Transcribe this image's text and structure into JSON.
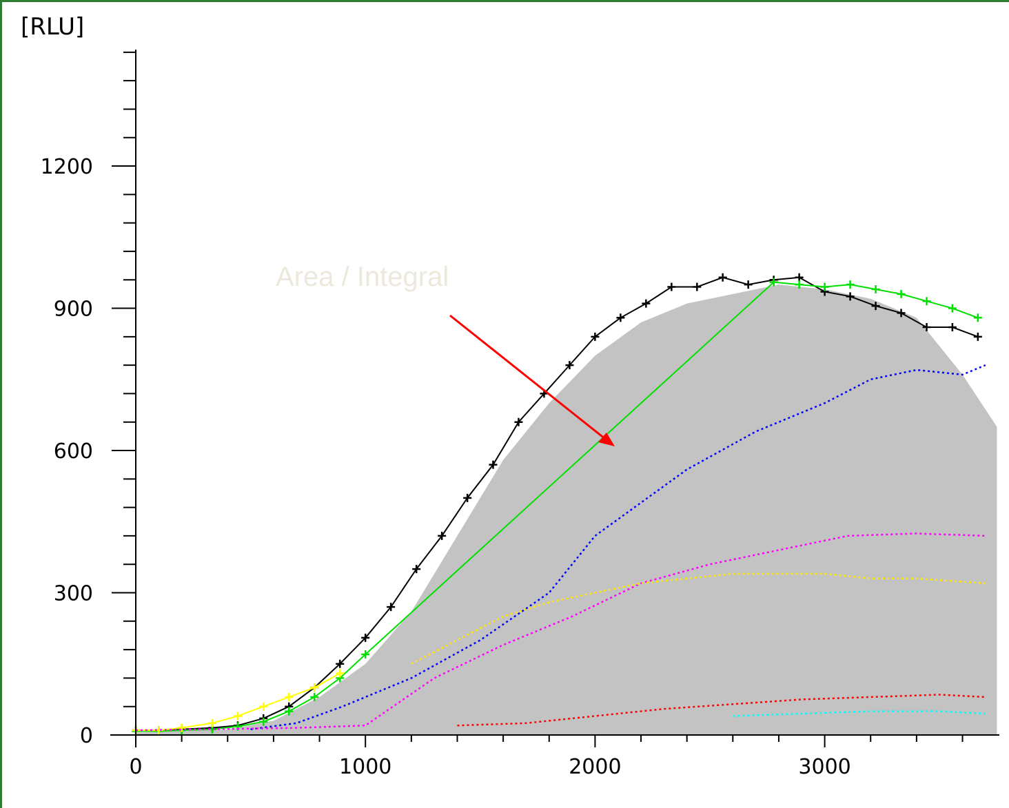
{
  "chart_data": {
    "type": "line",
    "title": "",
    "ylabel": "[RLU]",
    "xlabel": "",
    "xlim": [
      0,
      3750
    ],
    "ylim": [
      0,
      1450
    ],
    "x_ticks": [
      0,
      1000,
      2000,
      3000
    ],
    "y_ticks": [
      0,
      300,
      600,
      900,
      1200
    ],
    "grid": false,
    "annotation": "Area / Integral",
    "area_fill": {
      "color": "#c0c0c0",
      "x": [
        0,
        400,
        600,
        800,
        1000,
        1200,
        1400,
        1600,
        1800,
        2000,
        2200,
        2400,
        2600,
        2800,
        3000,
        3200,
        3400,
        3600,
        3750
      ],
      "y": [
        5,
        12,
        30,
        80,
        150,
        260,
        420,
        580,
        700,
        800,
        870,
        910,
        930,
        950,
        940,
        920,
        880,
        760,
        650
      ]
    },
    "series": [
      {
        "color": "#000000",
        "x": [
          0,
          100,
          200,
          333,
          444,
          556,
          667,
          778,
          889,
          1000,
          1111,
          1222,
          1333,
          1444,
          1556,
          1667,
          1778,
          1889,
          2000,
          2111,
          2222,
          2333,
          2444,
          2556,
          2667,
          2778,
          2889,
          3000,
          3111,
          3222,
          3333,
          3444,
          3556,
          3667
        ],
        "y": [
          10,
          10,
          12,
          15,
          20,
          35,
          60,
          100,
          150,
          205,
          270,
          350,
          420,
          500,
          570,
          660,
          720,
          780,
          840,
          880,
          910,
          945,
          945,
          965,
          950,
          960,
          965,
          935,
          925,
          905,
          890,
          860,
          860,
          840
        ]
      },
      {
        "color": "#00e000",
        "x": [
          0,
          100,
          200,
          333,
          444,
          556,
          667,
          778,
          889,
          1000,
          2778,
          2889,
          3000,
          3111,
          3222,
          3333,
          3444,
          3556,
          3667
        ],
        "y": [
          8,
          8,
          10,
          12,
          18,
          28,
          50,
          80,
          120,
          170,
          955,
          950,
          945,
          950,
          940,
          930,
          915,
          900,
          880
        ]
      },
      {
        "color": "#ffff00",
        "x": [
          0,
          100,
          200,
          333,
          444,
          556,
          667,
          778,
          889
        ],
        "y": [
          10,
          10,
          15,
          25,
          40,
          60,
          80,
          100,
          130
        ]
      },
      {
        "color": "#0000ff",
        "x": [
          500,
          700,
          900,
          1200,
          1500,
          1800,
          2000,
          2200,
          2400,
          2700,
          3000,
          3200,
          3400,
          3600,
          3700
        ],
        "y": [
          12,
          25,
          60,
          120,
          200,
          300,
          420,
          490,
          560,
          640,
          700,
          750,
          770,
          760,
          780
        ]
      },
      {
        "color": "#ff00ff",
        "x": [
          0,
          300,
          700,
          1000,
          1300,
          1600,
          1900,
          2200,
          2500,
          2800,
          3100,
          3400,
          3700
        ],
        "y": [
          10,
          12,
          15,
          20,
          120,
          190,
          250,
          320,
          360,
          390,
          420,
          425,
          420
        ]
      },
      {
        "color": "#ffe600",
        "x": [
          1200,
          1400,
          1600,
          1800,
          2000,
          2200,
          2400,
          2600,
          2800,
          3000,
          3200,
          3400,
          3700
        ],
        "y": [
          150,
          200,
          250,
          280,
          300,
          320,
          330,
          340,
          340,
          340,
          330,
          330,
          320
        ]
      },
      {
        "color": "#ff0000",
        "x": [
          1400,
          1700,
          2000,
          2300,
          2600,
          2900,
          3200,
          3500,
          3700
        ],
        "y": [
          20,
          25,
          40,
          55,
          65,
          75,
          80,
          85,
          80
        ]
      },
      {
        "color": "#00ffff",
        "x": [
          2600,
          2900,
          3200,
          3500,
          3700
        ],
        "y": [
          40,
          45,
          50,
          50,
          45
        ]
      }
    ]
  }
}
